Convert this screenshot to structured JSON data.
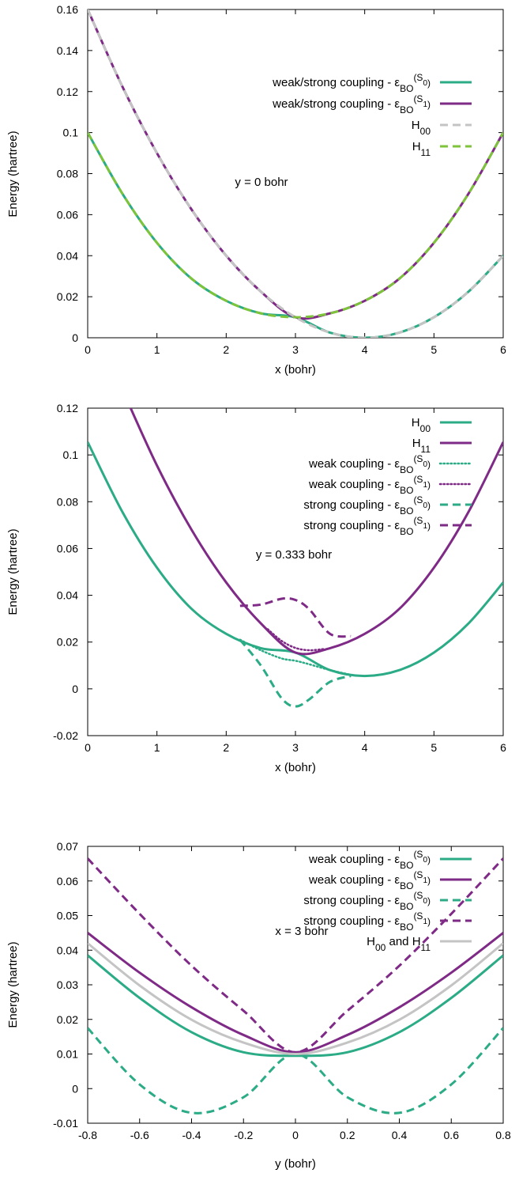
{
  "colors": {
    "green": "#2bab86",
    "purple": "#7e2a86",
    "gray": "#c4c4c4",
    "lime": "#7dc43a"
  },
  "chart_data": [
    {
      "type": "line",
      "xlabel": "x (bohr)",
      "ylabel": "Energy (hartree)",
      "xlim": [
        0,
        6
      ],
      "ylim": [
        0,
        0.16
      ],
      "xticks": [
        "0",
        "1",
        "2",
        "3",
        "4",
        "5",
        "6"
      ],
      "yticks": [
        "0",
        "0.02",
        "0.04",
        "0.06",
        "0.08",
        "0.1",
        "0.12",
        "0.14",
        "0.16"
      ],
      "annotation": "y = 0 bohr",
      "legend_position": "top-right",
      "grid": false,
      "x": [
        0,
        0.5,
        1,
        1.5,
        2,
        2.5,
        3,
        3.5,
        4,
        4.5,
        5,
        5.5,
        6
      ],
      "series": [
        {
          "name": "weak/strong coupling - ε",
          "subscript": "BO",
          "superscript": "S",
          "supersub": "0",
          "color": "green",
          "dash": "solid",
          "values": [
            0.1,
            0.0703,
            0.0463,
            0.0288,
            0.018,
            0.0119,
            0.01,
            0.0025,
            0.0,
            0.0025,
            0.01,
            0.0225,
            0.04
          ]
        },
        {
          "name": "weak/strong coupling - ε",
          "subscript": "BO",
          "superscript": "S",
          "supersub": "1",
          "color": "purple",
          "dash": "solid",
          "values": [
            0.16,
            0.1225,
            0.09,
            0.0625,
            0.04,
            0.0225,
            0.01,
            0.0119,
            0.018,
            0.0288,
            0.0463,
            0.0703,
            0.1
          ]
        },
        {
          "name": "H",
          "subscript": "00",
          "color": "gray",
          "dash": "dashed",
          "values": [
            0.16,
            0.1225,
            0.09,
            0.0625,
            0.04,
            0.0225,
            0.01,
            0.0025,
            0.0,
            0.0025,
            0.01,
            0.0225,
            0.04
          ]
        },
        {
          "name": "H",
          "subscript": "11",
          "color": "lime",
          "dash": "dashed",
          "values": [
            0.1,
            0.0703,
            0.0463,
            0.0288,
            0.018,
            0.0119,
            0.01,
            0.0119,
            0.018,
            0.0288,
            0.0463,
            0.0703,
            0.1
          ]
        }
      ]
    },
    {
      "type": "line",
      "xlabel": "x (bohr)",
      "ylabel": "Energy (hartree)",
      "xlim": [
        0,
        6
      ],
      "ylim": [
        -0.02,
        0.12
      ],
      "xticks": [
        "0",
        "1",
        "2",
        "3",
        "4",
        "5",
        "6"
      ],
      "yticks": [
        "-0.02",
        "0",
        "0.02",
        "0.04",
        "0.06",
        "0.08",
        "0.1",
        "0.12"
      ],
      "annotation": "y = 0.333 bohr",
      "legend_position": "top-right",
      "grid": false,
      "series": [
        {
          "name": "H",
          "subscript": "00",
          "color": "green",
          "dash": "solid",
          "x": [
            0,
            0.5,
            1,
            1.5,
            2,
            2.5,
            3,
            3.5,
            4,
            4.5,
            5,
            5.5,
            6
          ],
          "values": [
            0.1055,
            0.0757,
            0.0518,
            0.0342,
            0.0235,
            0.0174,
            0.0155,
            0.008,
            0.0055,
            0.008,
            0.0155,
            0.028,
            0.0455
          ]
        },
        {
          "name": "H",
          "subscript": "11",
          "color": "purple",
          "dash": "solid",
          "x": [
            0.5,
            1,
            1.5,
            2,
            2.5,
            3,
            3.5,
            4,
            4.5,
            5,
            5.5,
            6
          ],
          "values": [
            0.128,
            0.0955,
            0.068,
            0.0455,
            0.028,
            0.0155,
            0.0174,
            0.0235,
            0.0342,
            0.0518,
            0.0757,
            0.1055
          ]
        },
        {
          "name": "weak coupling - ε",
          "subscript": "BO",
          "superscript": "S",
          "supersub": "0",
          "color": "green",
          "dash": "dotted",
          "x": [
            2.2,
            2.5,
            2.8,
            3.0,
            3.2,
            3.5,
            3.8
          ],
          "values": [
            0.021,
            0.0165,
            0.013,
            0.012,
            0.0105,
            0.008,
            0.006
          ]
        },
        {
          "name": "weak coupling - ε",
          "subscript": "BO",
          "superscript": "S",
          "supersub": "1",
          "color": "purple",
          "dash": "dotted",
          "x": [
            2.6,
            2.8,
            3.0,
            3.2,
            3.4
          ],
          "values": [
            0.0255,
            0.0205,
            0.0175,
            0.0165,
            0.017
          ]
        },
        {
          "name": "strong coupling - ε",
          "subscript": "BO",
          "superscript": "S",
          "supersub": "0",
          "color": "green",
          "dash": "dashed",
          "x": [
            2.2,
            2.5,
            2.8,
            3.0,
            3.2,
            3.5,
            3.8
          ],
          "values": [
            0.021,
            0.01,
            -0.004,
            -0.0075,
            -0.0045,
            0.003,
            0.0055
          ]
        },
        {
          "name": "strong coupling - ε",
          "subscript": "BO",
          "superscript": "S",
          "supersub": "1",
          "color": "purple",
          "dash": "dashed",
          "x": [
            2.2,
            2.5,
            2.8,
            3.0,
            3.2,
            3.5,
            3.8
          ],
          "values": [
            0.0355,
            0.036,
            0.0385,
            0.038,
            0.034,
            0.0235,
            0.0225
          ]
        }
      ]
    },
    {
      "type": "line",
      "xlabel": "y (bohr)",
      "ylabel": "Energy (hartree)",
      "xlim": [
        -0.8,
        0.8
      ],
      "ylim": [
        -0.01,
        0.07
      ],
      "xticks": [
        "-0.8",
        "-0.6",
        "-0.4",
        "-0.2",
        "0",
        "0.2",
        "0.4",
        "0.6",
        "0.8"
      ],
      "yticks": [
        "-0.01",
        "0",
        "0.01",
        "0.02",
        "0.03",
        "0.04",
        "0.05",
        "0.06",
        "0.07"
      ],
      "annotation": "x = 3 bohr",
      "legend_position": "top-right",
      "grid": false,
      "x": [
        -0.8,
        -0.6,
        -0.4,
        -0.2,
        0,
        0.2,
        0.4,
        0.6,
        0.8
      ],
      "series": [
        {
          "name": "weak coupling - ε",
          "subscript": "BO",
          "superscript": "S",
          "supersub": "0",
          "color": "green",
          "dash": "solid",
          "values": [
            0.0385,
            0.0262,
            0.0163,
            0.0105,
            0.0095,
            0.0105,
            0.0163,
            0.0262,
            0.0385
          ]
        },
        {
          "name": "weak coupling - ε",
          "subscript": "BO",
          "superscript": "S",
          "supersub": "1",
          "color": "purple",
          "dash": "solid",
          "values": [
            0.045,
            0.0335,
            0.0235,
            0.0155,
            0.0105,
            0.0155,
            0.0235,
            0.0335,
            0.045
          ]
        },
        {
          "name": "strong coupling - ε",
          "subscript": "BO",
          "superscript": "S",
          "supersub": "0",
          "color": "green",
          "dash": "dashed",
          "values": [
            0.0175,
            0.0012,
            -0.007,
            -0.0025,
            0.01,
            -0.0025,
            -0.007,
            0.0012,
            0.0175
          ]
        },
        {
          "name": "strong coupling - ε",
          "subscript": "BO",
          "superscript": "S",
          "supersub": "1",
          "color": "purple",
          "dash": "dashed",
          "values": [
            0.0665,
            0.0505,
            0.0355,
            0.0225,
            0.0105,
            0.0225,
            0.0355,
            0.0505,
            0.0665
          ]
        },
        {
          "name": "H",
          "subscript": "00",
          "suffix": " and H",
          "suffix_sub": "11",
          "color": "gray",
          "dash": "solid",
          "values": [
            0.042,
            0.0298,
            0.0199,
            0.0133,
            0.01,
            0.0133,
            0.0199,
            0.0298,
            0.042
          ]
        }
      ]
    }
  ]
}
